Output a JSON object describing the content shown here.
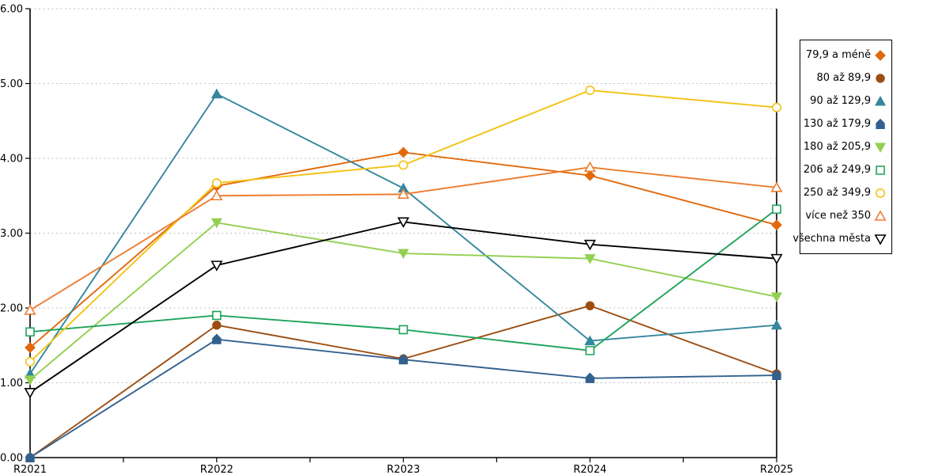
{
  "chart_data": {
    "type": "line",
    "title": "",
    "xlabel": "",
    "ylabel": "",
    "categories": [
      "R2021",
      "R2022",
      "R2023",
      "R2024",
      "R2025"
    ],
    "series": [
      {
        "name": "79,9 a méně",
        "color": "#E2690B",
        "marker": "diamond",
        "fill": "solid",
        "values": [
          1.47,
          3.63,
          4.08,
          3.77,
          3.11
        ]
      },
      {
        "name": "80 až 89,9",
        "color": "#9C4E12",
        "marker": "circle",
        "fill": "solid",
        "values": [
          0.0,
          1.77,
          1.32,
          2.03,
          1.12
        ]
      },
      {
        "name": "90 až 129,9",
        "color": "#35879E",
        "marker": "triangle-up",
        "fill": "solid",
        "values": [
          1.12,
          4.86,
          3.6,
          1.56,
          1.77
        ]
      },
      {
        "name": "130 až 179,9",
        "color": "#33618E",
        "marker": "pentagon",
        "fill": "solid",
        "values": [
          0.0,
          1.58,
          1.31,
          1.06,
          1.1
        ]
      },
      {
        "name": "180 až 205,9",
        "color": "#92D050",
        "marker": "triangle-down",
        "fill": "solid",
        "values": [
          1.04,
          3.14,
          2.73,
          2.66,
          2.15
        ]
      },
      {
        "name": "206 až 249,9",
        "color": "#1FA35C",
        "marker": "square",
        "fill": "hollow",
        "values": [
          1.68,
          1.9,
          1.71,
          1.43,
          3.32
        ]
      },
      {
        "name": "250 až 349,9",
        "color": "#F3C314",
        "marker": "circle",
        "fill": "hollow",
        "values": [
          1.28,
          3.67,
          3.91,
          4.91,
          4.68
        ]
      },
      {
        "name": "více než 350",
        "color": "#ED7D31",
        "marker": "triangle-up",
        "fill": "hollow",
        "values": [
          1.97,
          3.5,
          3.52,
          3.88,
          3.61
        ]
      },
      {
        "name": "všechna města",
        "color": "#000000",
        "marker": "triangle-down",
        "fill": "hollow",
        "values": [
          0.87,
          2.57,
          3.15,
          2.85,
          2.66
        ]
      }
    ],
    "ylim": [
      0,
      6
    ],
    "ytick_step": 1,
    "ytick_labels": [
      "0.00",
      "1.00",
      "2.00",
      "3.00",
      "4.00",
      "5.00",
      "6.00"
    ],
    "grid": "horizontal-dotted",
    "legend_position": "right"
  },
  "colors": {
    "background": "#FFFFFF",
    "axis": "#000000",
    "gridline": "#BFBFBF",
    "tick_label": "#000000"
  }
}
